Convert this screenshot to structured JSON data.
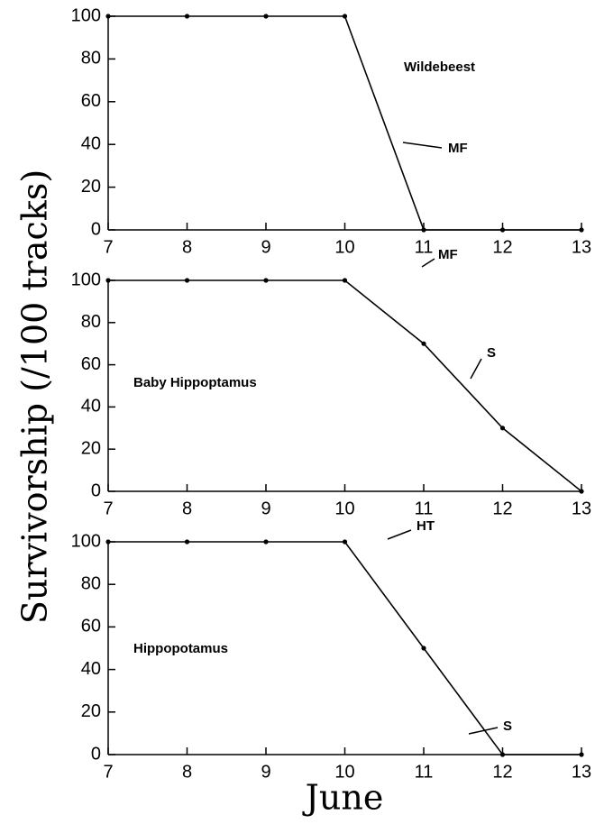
{
  "ylabel": "Survivorship (/100 tracks)",
  "xlabel": "June",
  "chart_data": [
    {
      "type": "line",
      "x": [
        7,
        8,
        9,
        10,
        11,
        12,
        13
      ],
      "values": [
        100,
        100,
        100,
        100,
        0,
        0,
        0
      ],
      "color": "#000000",
      "xlim": [
        7,
        13
      ],
      "ylim": [
        0,
        100
      ],
      "xticks": [
        7,
        8,
        9,
        10,
        11,
        12,
        13
      ],
      "yticks": [
        0,
        20,
        40,
        60,
        80,
        100
      ],
      "annotations": [
        "Wildebeest",
        "MF"
      ]
    },
    {
      "type": "line",
      "x": [
        7,
        8,
        9,
        10,
        11,
        12,
        13
      ],
      "values": [
        100,
        100,
        100,
        100,
        70,
        30,
        0
      ],
      "color": "#000000",
      "xlim": [
        7,
        13
      ],
      "ylim": [
        0,
        100
      ],
      "xticks": [
        7,
        8,
        9,
        10,
        11,
        12,
        13
      ],
      "yticks": [
        0,
        20,
        40,
        60,
        80,
        100
      ],
      "annotations": [
        "Baby Hippoptamus",
        "MF",
        "S"
      ]
    },
    {
      "type": "line",
      "x": [
        7,
        8,
        9,
        10,
        11,
        12,
        13
      ],
      "values": [
        100,
        100,
        100,
        100,
        50,
        0,
        0
      ],
      "color": "#000000",
      "xlim": [
        7,
        13
      ],
      "ylim": [
        0,
        100
      ],
      "xticks": [
        7,
        8,
        9,
        10,
        11,
        12,
        13
      ],
      "yticks": [
        0,
        20,
        40,
        60,
        80,
        100
      ],
      "annotations": [
        "Hippopotamus",
        "HT",
        "S"
      ]
    }
  ]
}
